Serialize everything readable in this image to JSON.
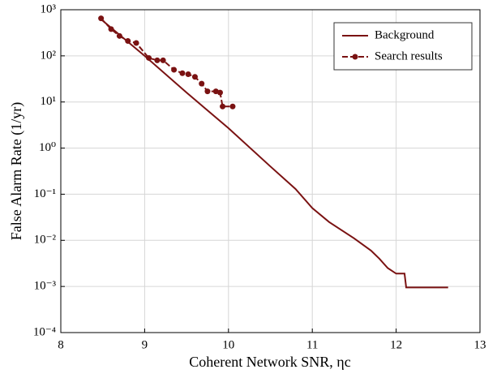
{
  "chart_data": {
    "type": "line",
    "xlabel": "Coherent Network SNR, ηc",
    "ylabel": "False Alarm Rate (1/yr)",
    "xlim": [
      8,
      13
    ],
    "xticks": [
      8,
      9,
      10,
      11,
      12,
      13
    ],
    "ylim": [
      0.0001,
      1000
    ],
    "yscale": "log",
    "yticks": [
      {
        "value": 0.0001,
        "label": "10⁻⁴"
      },
      {
        "value": 0.001,
        "label": "10⁻³"
      },
      {
        "value": 0.01,
        "label": "10⁻²"
      },
      {
        "value": 0.1,
        "label": "10⁻¹"
      },
      {
        "value": 1,
        "label": "10⁰"
      },
      {
        "value": 10,
        "label": "10¹"
      },
      {
        "value": 100,
        "label": "10²"
      },
      {
        "value": 1000,
        "label": "10³"
      }
    ],
    "grid": true,
    "legend": "upper right",
    "series": [
      {
        "name": "Background",
        "color": "#7a1212",
        "marker": false,
        "dashed": false,
        "x": [
          8.48,
          9.0,
          9.5,
          10.0,
          10.5,
          10.8,
          11.0,
          11.2,
          11.5,
          11.7,
          11.8,
          11.9,
          12.0,
          12.1,
          12.12,
          12.62
        ],
        "values": [
          620,
          100,
          16,
          2.7,
          0.4,
          0.13,
          0.05,
          0.025,
          0.011,
          0.006,
          0.004,
          0.0025,
          0.0019,
          0.0019,
          0.00095,
          0.00095
        ]
      },
      {
        "name": "Search results",
        "color": "#7a1212",
        "marker": true,
        "dashed": true,
        "x": [
          8.48,
          8.6,
          8.7,
          8.8,
          8.9,
          9.05,
          9.15,
          9.22,
          9.35,
          9.45,
          9.52,
          9.6,
          9.68,
          9.75,
          9.85,
          9.9,
          9.93,
          10.05
        ],
        "values": [
          650,
          380,
          270,
          210,
          190,
          90,
          80,
          80,
          50,
          42,
          40,
          35,
          25,
          17,
          17,
          16,
          8,
          8
        ]
      }
    ]
  }
}
